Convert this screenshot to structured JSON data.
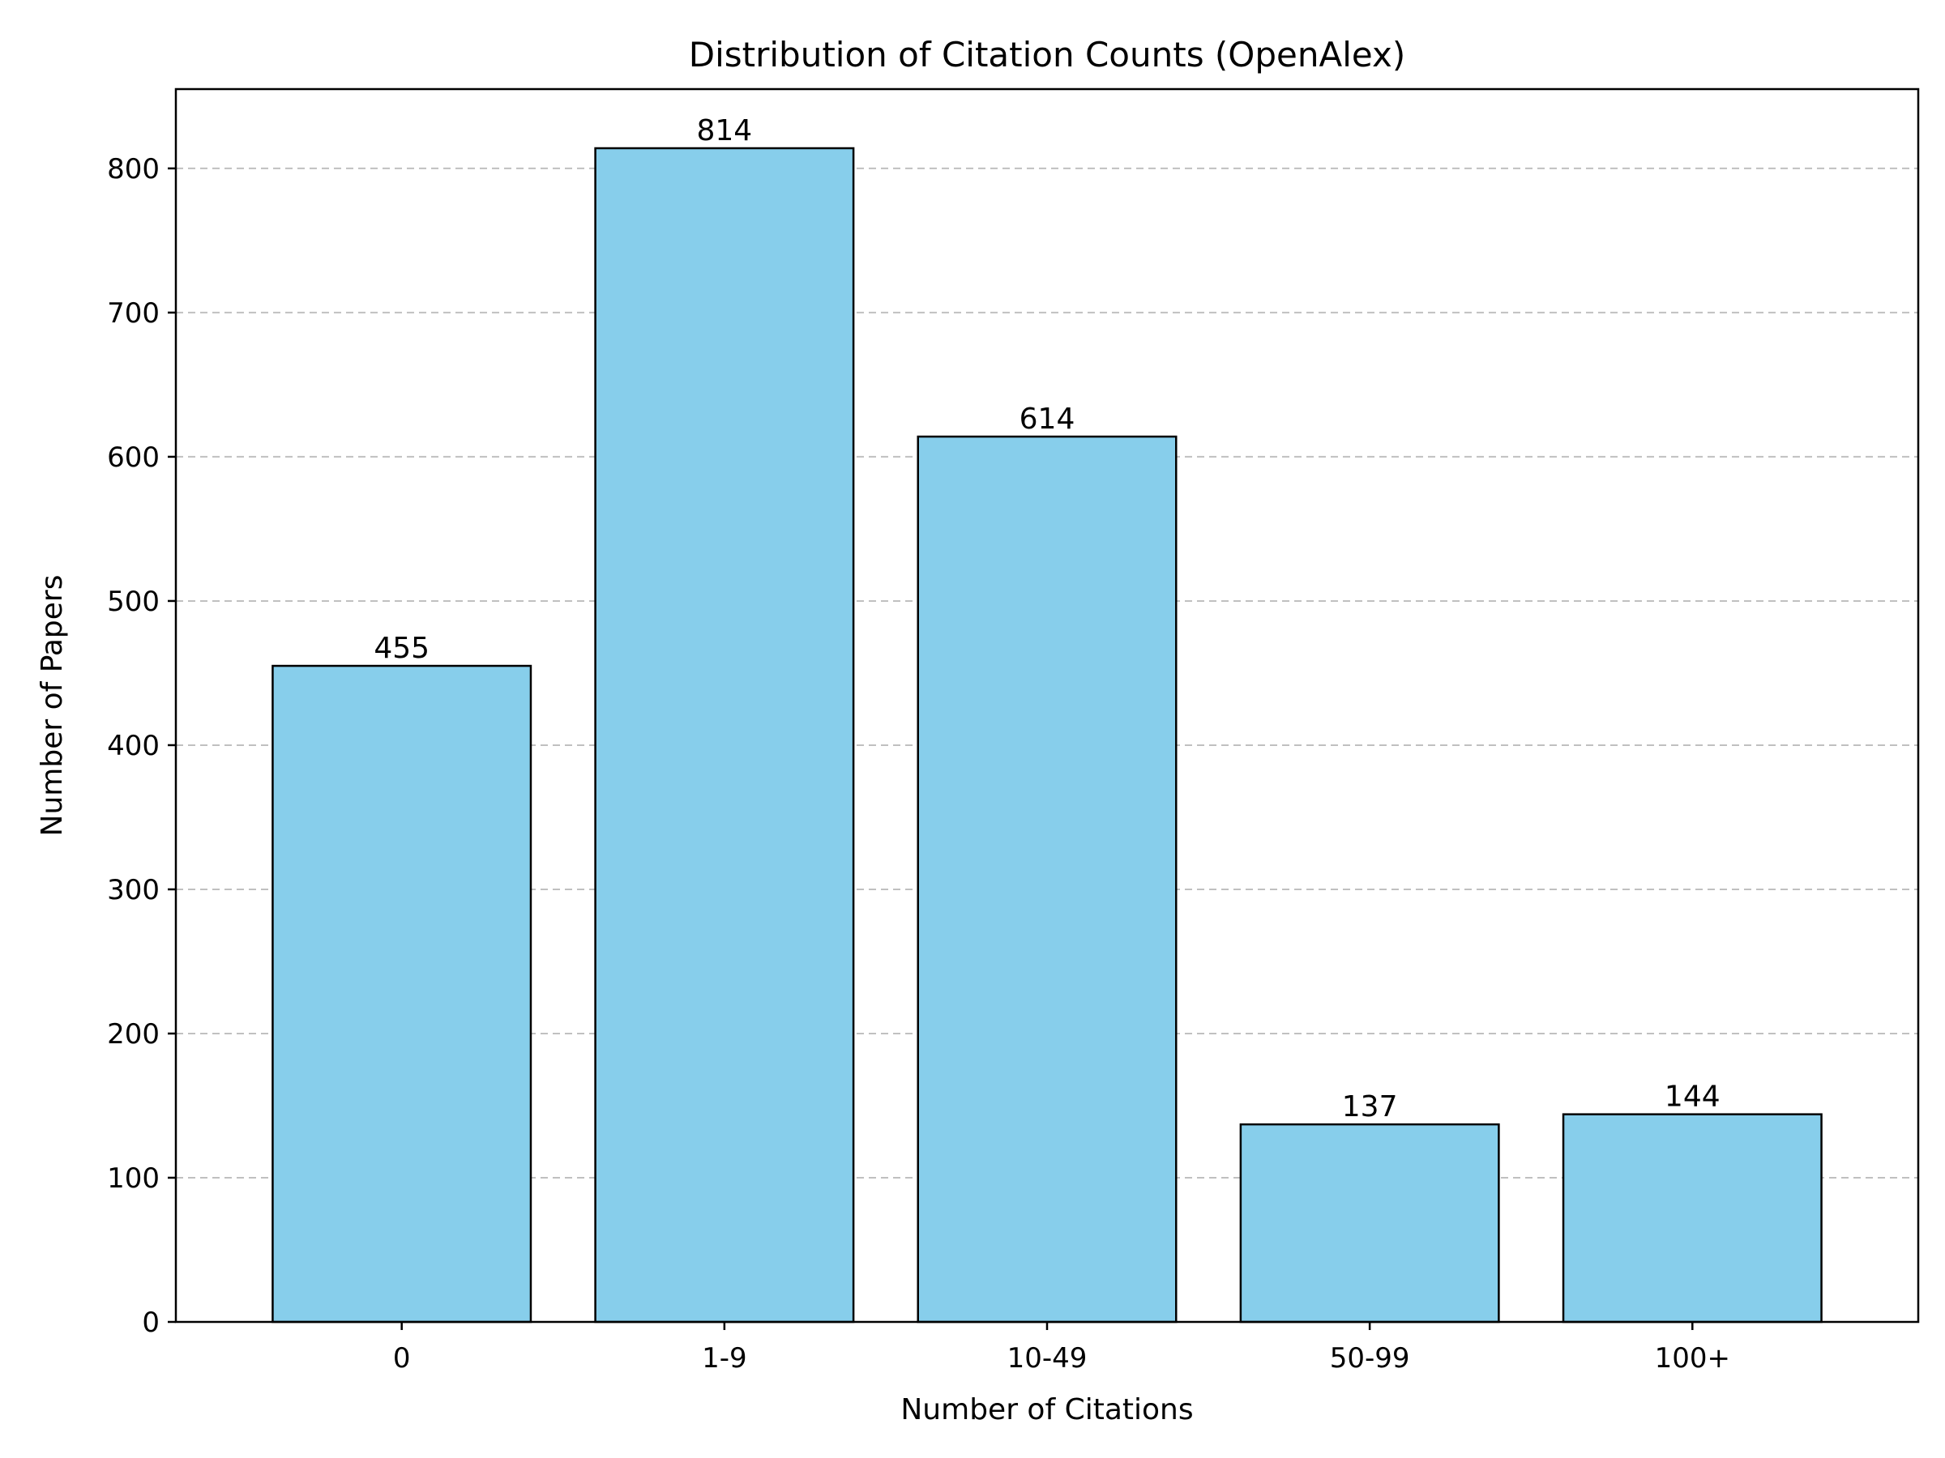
{
  "chart_data": {
    "type": "bar",
    "title": "Distribution of Citation Counts (OpenAlex)",
    "xlabel": "Number of Citations",
    "ylabel": "Number of Papers",
    "categories": [
      "0",
      "1-9",
      "10-49",
      "50-99",
      "100+"
    ],
    "values": [
      455,
      814,
      614,
      137,
      144
    ],
    "data_labels": [
      "455",
      "814",
      "614",
      "137",
      "144"
    ],
    "ylim": [
      0,
      855
    ],
    "yticks": [
      0,
      100,
      200,
      300,
      400,
      500,
      600,
      700,
      800
    ],
    "ytick_labels": [
      "0",
      "100",
      "200",
      "300",
      "400",
      "500",
      "600",
      "700",
      "800"
    ],
    "grid": "y-dashed",
    "bar_color": "#87CEEB",
    "edge_color": "#000000",
    "grid_color": "#c0c0c0"
  }
}
